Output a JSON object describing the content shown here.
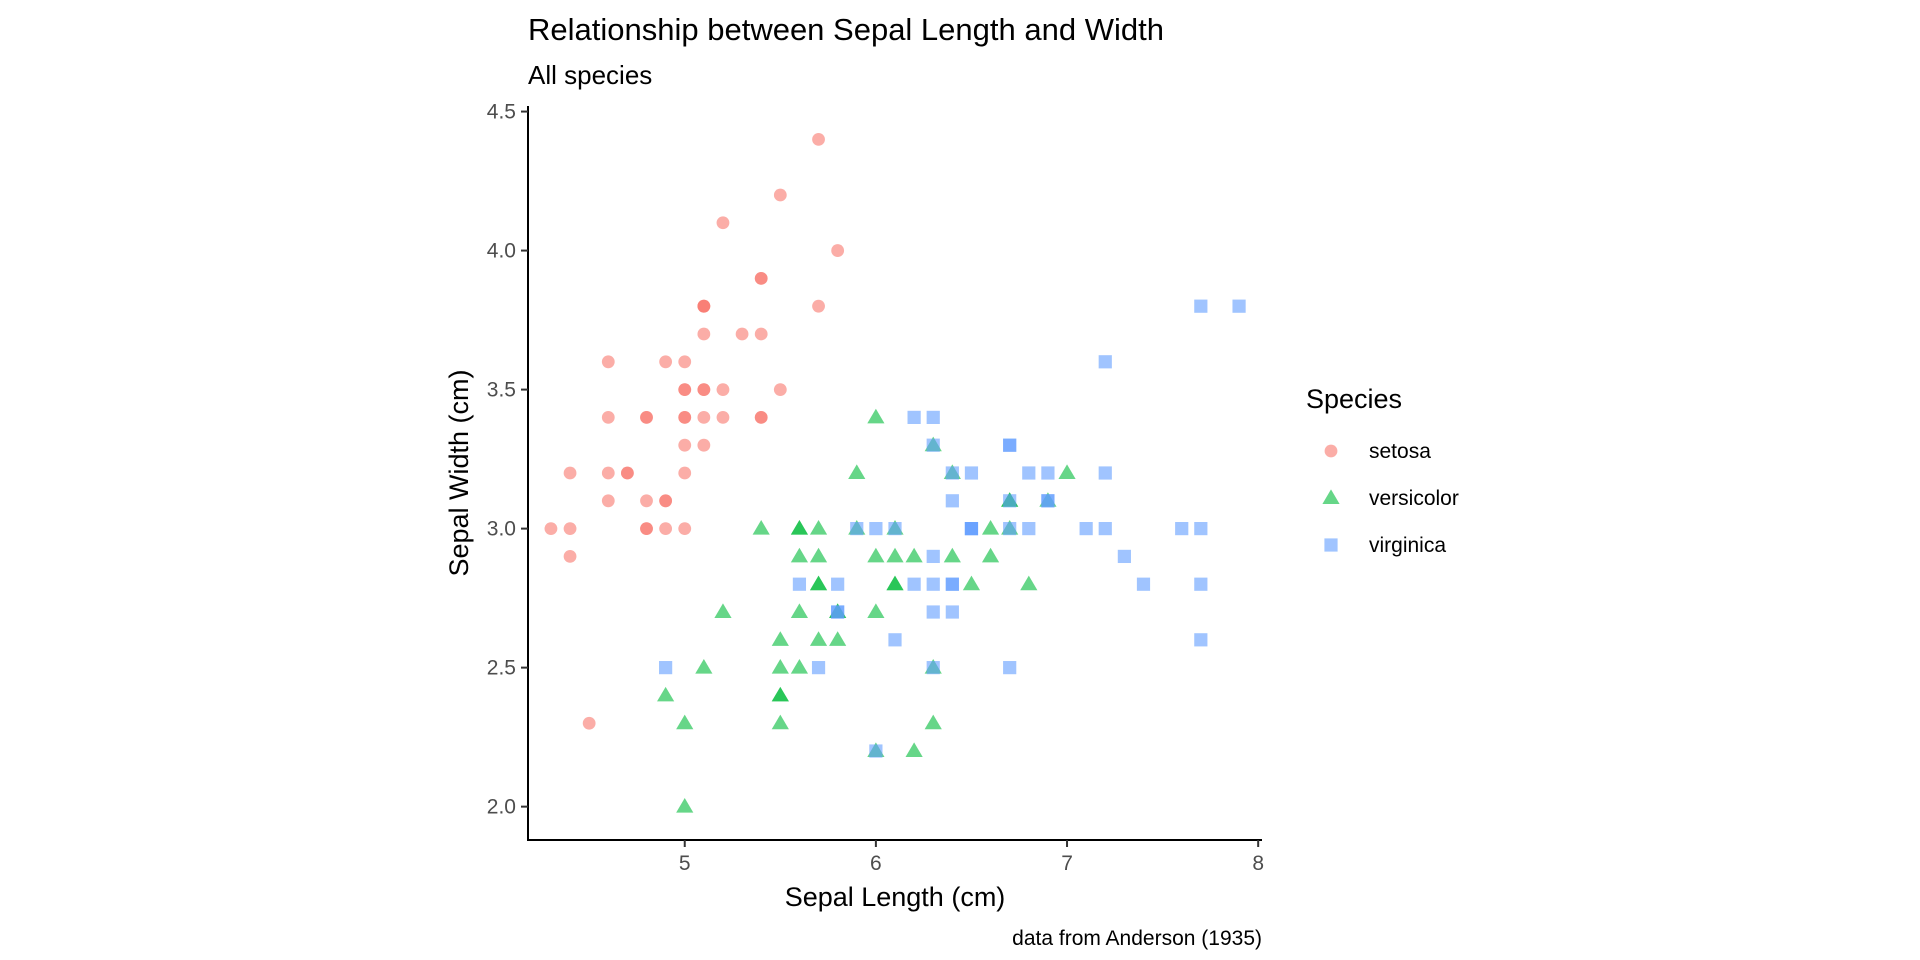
{
  "colors": {
    "setosa": "#F8766D",
    "versicolor": "#00BA38",
    "virginica": "#619CFF"
  },
  "chart_data": {
    "type": "scatter",
    "title": "Relationship between Sepal Length and Width",
    "subtitle": "All species",
    "xlabel": "Sepal Length (cm)",
    "ylabel": "Sepal Width (cm)",
    "caption": "data from Anderson (1935)",
    "xlim": [
      4.18,
      8.02
    ],
    "ylim": [
      1.88,
      4.52
    ],
    "xticks": [
      5,
      6,
      7,
      8
    ],
    "yticks": [
      2.0,
      2.5,
      3.0,
      3.5,
      4.0,
      4.5
    ],
    "grid": false,
    "legend": {
      "title": "Species",
      "position": "right"
    },
    "series": [
      {
        "name": "setosa",
        "marker": "circle",
        "color": "#F8766D",
        "x": [
          5.1,
          4.9,
          4.7,
          4.6,
          5.0,
          5.4,
          4.6,
          5.0,
          4.4,
          4.9,
          5.4,
          4.8,
          4.8,
          4.3,
          5.8,
          5.7,
          5.4,
          5.1,
          5.7,
          5.1,
          5.4,
          5.1,
          4.6,
          5.1,
          4.8,
          5.0,
          5.0,
          5.2,
          5.2,
          4.7,
          4.8,
          5.4,
          5.2,
          5.5,
          4.9,
          5.0,
          5.5,
          4.9,
          4.4,
          5.1,
          5.0,
          4.5,
          4.4,
          5.0,
          5.1,
          4.8,
          5.1,
          4.6,
          5.3,
          5.0
        ],
        "y": [
          3.5,
          3.0,
          3.2,
          3.1,
          3.6,
          3.9,
          3.4,
          3.4,
          2.9,
          3.1,
          3.7,
          3.4,
          3.0,
          3.0,
          4.0,
          4.4,
          3.9,
          3.5,
          3.8,
          3.8,
          3.4,
          3.7,
          3.6,
          3.3,
          3.4,
          3.0,
          3.4,
          3.5,
          3.4,
          3.2,
          3.1,
          3.4,
          4.1,
          4.2,
          3.1,
          3.2,
          3.5,
          3.6,
          3.0,
          3.4,
          3.5,
          2.3,
          3.2,
          3.5,
          3.8,
          3.0,
          3.8,
          3.2,
          3.7,
          3.3
        ]
      },
      {
        "name": "versicolor",
        "marker": "triangle",
        "color": "#00BA38",
        "x": [
          7.0,
          6.4,
          6.9,
          5.5,
          6.5,
          5.7,
          6.3,
          4.9,
          6.6,
          5.2,
          5.0,
          5.9,
          6.0,
          6.1,
          5.6,
          6.7,
          5.6,
          5.8,
          6.2,
          5.6,
          5.9,
          6.1,
          6.3,
          6.1,
          6.4,
          6.6,
          6.8,
          6.7,
          6.0,
          5.7,
          5.5,
          5.5,
          5.8,
          6.0,
          5.4,
          6.0,
          6.7,
          6.3,
          5.6,
          5.5,
          5.5,
          6.1,
          5.8,
          5.0,
          5.6,
          5.7,
          5.7,
          6.2,
          5.1,
          5.7
        ],
        "y": [
          3.2,
          3.2,
          3.1,
          2.3,
          2.8,
          2.8,
          3.3,
          2.4,
          2.9,
          2.7,
          2.0,
          3.0,
          2.2,
          2.9,
          2.9,
          3.1,
          3.0,
          2.7,
          2.2,
          2.5,
          3.2,
          2.8,
          2.5,
          2.8,
          2.9,
          3.0,
          2.8,
          3.0,
          2.9,
          2.6,
          2.4,
          2.4,
          2.7,
          2.7,
          3.0,
          3.4,
          3.1,
          2.3,
          3.0,
          2.5,
          2.6,
          3.0,
          2.6,
          2.3,
          2.7,
          3.0,
          2.9,
          2.9,
          2.5,
          2.8
        ]
      },
      {
        "name": "virginica",
        "marker": "square",
        "color": "#619CFF",
        "x": [
          6.3,
          5.8,
          7.1,
          6.3,
          6.5,
          7.6,
          4.9,
          7.3,
          6.7,
          7.2,
          6.5,
          6.4,
          6.8,
          5.7,
          5.8,
          6.4,
          6.5,
          7.7,
          7.7,
          6.0,
          6.9,
          5.6,
          7.7,
          6.3,
          6.7,
          7.2,
          6.2,
          6.1,
          6.4,
          7.2,
          7.4,
          7.9,
          6.4,
          6.3,
          6.1,
          7.7,
          6.3,
          6.4,
          6.0,
          6.9,
          6.7,
          6.9,
          5.8,
          6.8,
          6.7,
          6.7,
          6.3,
          6.5,
          6.2,
          5.9
        ],
        "y": [
          3.3,
          2.7,
          3.0,
          2.9,
          3.0,
          3.0,
          2.5,
          2.9,
          2.5,
          3.6,
          3.2,
          2.7,
          3.0,
          2.5,
          2.8,
          3.2,
          3.0,
          3.8,
          2.6,
          2.2,
          3.2,
          2.8,
          2.8,
          2.7,
          3.3,
          3.2,
          2.8,
          3.0,
          2.8,
          3.0,
          2.8,
          3.8,
          2.8,
          2.8,
          2.6,
          3.0,
          3.4,
          3.1,
          3.0,
          3.1,
          3.1,
          3.1,
          2.7,
          3.2,
          3.3,
          3.0,
          2.5,
          3.0,
          3.4,
          3.0
        ]
      }
    ]
  }
}
